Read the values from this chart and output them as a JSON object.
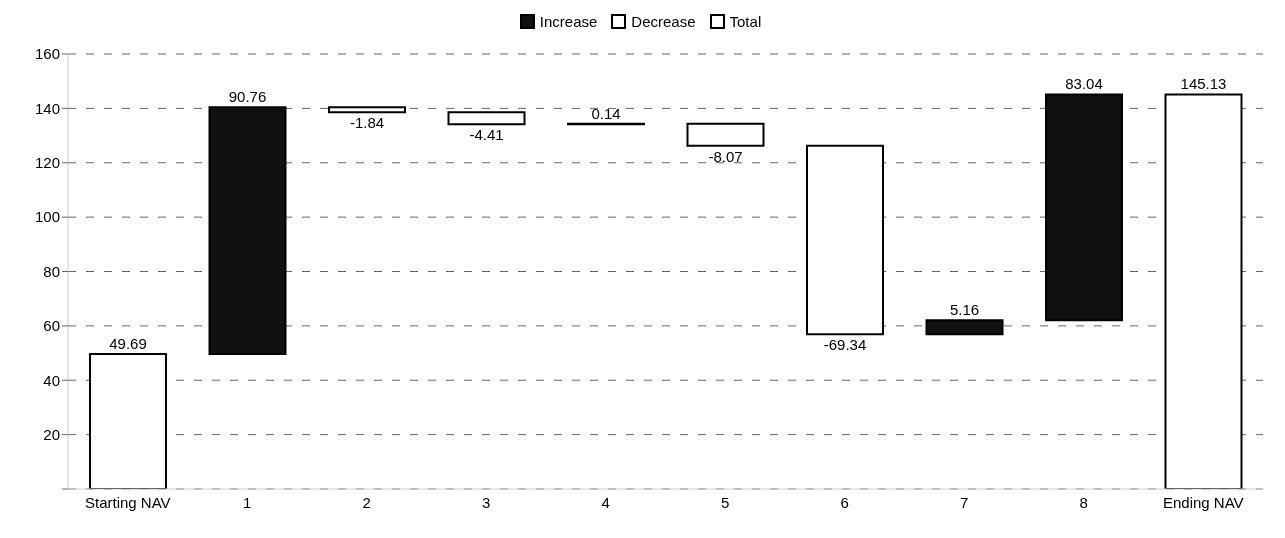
{
  "chart_data": {
    "type": "bar",
    "categories": [
      "Starting NAV",
      "1",
      "2",
      "3",
      "4",
      "5",
      "6",
      "7",
      "8",
      "Ending NAV"
    ],
    "series": [
      {
        "name": "Increase",
        "color": "#111111",
        "values": [
          null,
          90.76,
          null,
          null,
          0.14,
          null,
          null,
          5.16,
          83.04,
          null
        ],
        "base": [
          null,
          49.69,
          null,
          null,
          134.2,
          null,
          null,
          56.93,
          62.09,
          null
        ]
      },
      {
        "name": "Decrease",
        "color": "#ffffff",
        "values": [
          null,
          null,
          -1.84,
          -4.41,
          null,
          -8.07,
          -69.34,
          null,
          null,
          null
        ],
        "base": [
          null,
          null,
          140.45,
          138.61,
          null,
          134.34,
          126.27,
          null,
          null,
          null
        ]
      },
      {
        "name": "Total",
        "color": "#ffffff",
        "values": [
          49.69,
          null,
          null,
          null,
          null,
          null,
          null,
          null,
          null,
          145.13
        ],
        "base": [
          0,
          null,
          null,
          null,
          null,
          null,
          null,
          null,
          null,
          0
        ]
      }
    ],
    "ylim": [
      0,
      160
    ],
    "yticks": [
      {
        "value": 0,
        "label": null
      },
      20,
      40,
      60,
      80,
      100,
      120,
      140,
      160
    ],
    "grid": "y",
    "legend": "top",
    "data_labels": true
  }
}
